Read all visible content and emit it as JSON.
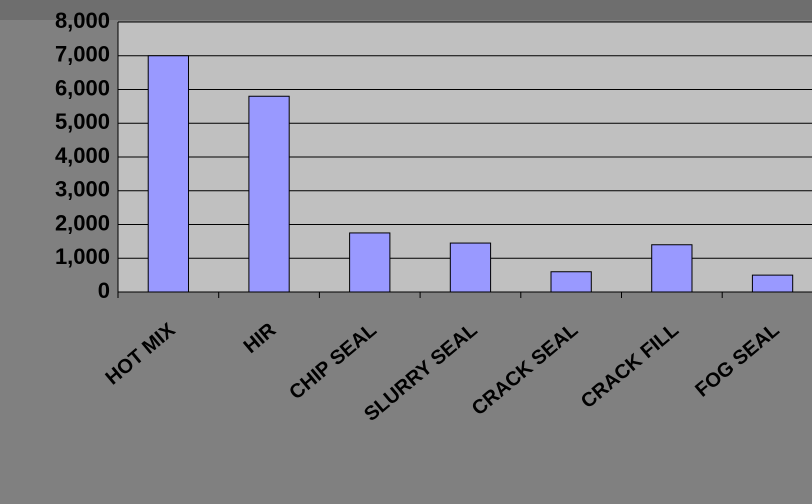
{
  "chart_data": {
    "type": "bar",
    "categories": [
      "HOT MIX",
      "HIR",
      "CHIP SEAL",
      "SLURRY SEAL",
      "CRACK SEAL",
      "CRACK FILL",
      "FOG SEAL"
    ],
    "values": [
      7000,
      5800,
      1750,
      1450,
      600,
      1400,
      500
    ],
    "color": "#9999ff",
    "ylim": [
      0,
      8000
    ],
    "yticks": [
      {
        "value": 0,
        "label": "0"
      },
      {
        "value": 1000,
        "label": "1,000"
      },
      {
        "value": 2000,
        "label": "2,000"
      },
      {
        "value": 3000,
        "label": "3,000"
      },
      {
        "value": 4000,
        "label": "4,000"
      },
      {
        "value": 5000,
        "label": "5,000"
      },
      {
        "value": 6000,
        "label": "6,000"
      },
      {
        "value": 7000,
        "label": "7,000"
      },
      {
        "value": 8000,
        "label": "8,000"
      }
    ],
    "grid": true
  }
}
